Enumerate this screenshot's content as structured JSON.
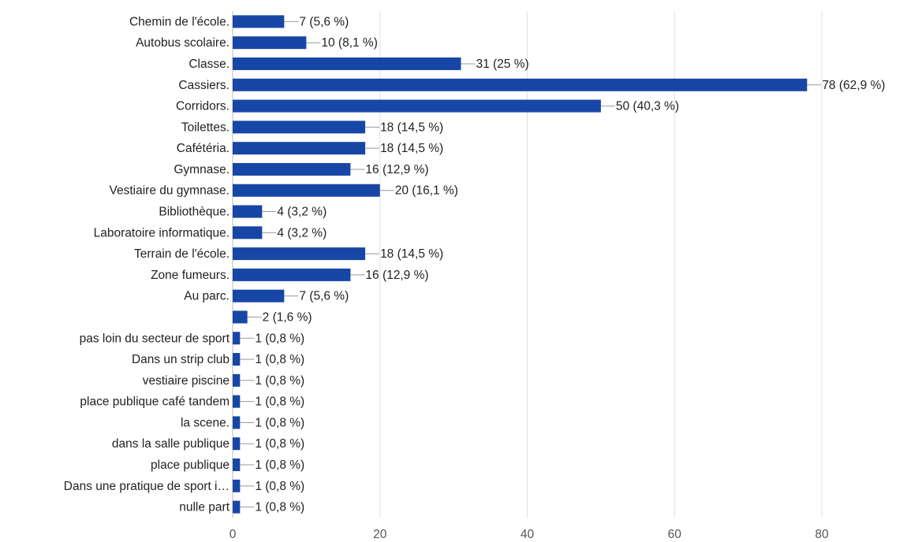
{
  "chart_data": {
    "type": "bar",
    "orientation": "horizontal",
    "categories": [
      "Chemin de l'école.",
      "Autobus scolaire.",
      "Classe.",
      "Cassiers.",
      "Corridors.",
      "Toilettes.",
      "Cafétéria.",
      "Gymnase.",
      "Vestiaire du gymnase.",
      "Bibliothèque.",
      "Laboratoire informatique.",
      "Terrain de l'école.",
      "Zone fumeurs.",
      "Au parc.",
      "",
      "pas loin du secteur de sport",
      "Dans un strip club",
      "vestiaire piscine",
      "place publique café tandem",
      "la scene.",
      "dans la salle publique",
      "place publique",
      "Dans une pratique de sport i…",
      "nulle part"
    ],
    "values": [
      7,
      10,
      31,
      78,
      50,
      18,
      18,
      16,
      20,
      4,
      4,
      18,
      16,
      7,
      2,
      1,
      1,
      1,
      1,
      1,
      1,
      1,
      1,
      1
    ],
    "value_labels": [
      "7 (5,6 %)",
      "10 (8,1 %)",
      "31 (25 %)",
      "78 (62,9 %)",
      "50 (40,3 %)",
      "18 (14,5 %)",
      "18 (14,5 %)",
      "16 (12,9 %)",
      "20 (16,1 %)",
      "4 (3,2 %)",
      "4 (3,2 %)",
      "18 (14,5 %)",
      "16 (12,9 %)",
      "7 (5,6 %)",
      "2 (1,6 %)",
      "1 (0,8 %)",
      "1 (0,8 %)",
      "1 (0,8 %)",
      "1 (0,8 %)",
      "1 (0,8 %)",
      "1 (0,8 %)",
      "1 (0,8 %)",
      "1 (0,8 %)",
      "1 (0,8 %)"
    ],
    "xlim": [
      0,
      80
    ],
    "xticks": [
      "0",
      "20",
      "40",
      "60",
      "80"
    ],
    "grid": true,
    "title": "",
    "xlabel": "",
    "ylabel": "",
    "colors": {
      "bar": "#1747a6",
      "grid": "#e0e0e0",
      "leader": "#999999"
    }
  }
}
